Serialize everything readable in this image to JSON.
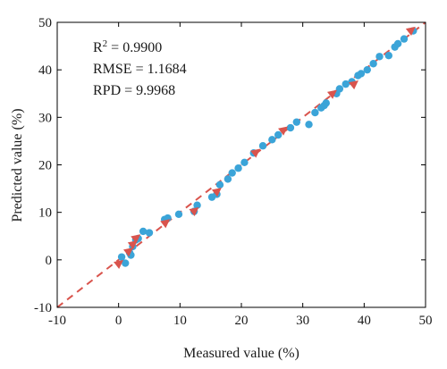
{
  "chart_data": {
    "type": "scatter",
    "xlabel": "Measured value (%)",
    "ylabel": "Predicted value (%)",
    "xlim": [
      -10,
      50
    ],
    "ylim": [
      -10,
      50
    ],
    "xticks": [
      -10,
      0,
      10,
      20,
      30,
      40,
      50
    ],
    "yticks": [
      -10,
      0,
      10,
      20,
      30,
      40,
      50
    ],
    "grid": false,
    "annotations": {
      "r2_prefix": "R",
      "r2_sup": "2",
      "r2_value": " = 0.9900",
      "rmse": "RMSE = 1.1684",
      "rpd": "RPD = 9.9968"
    },
    "reference_line": {
      "style": "dashed",
      "color": "#d9544d",
      "x": [
        -10,
        50
      ],
      "y": [
        -10,
        50
      ]
    },
    "colors": {
      "points": "#3ba4d8",
      "arrows": "#d9544d"
    },
    "series": [
      {
        "marker": "circle",
        "x": [
          0.5,
          1.1,
          1.8,
          2.0,
          2.3,
          2.8,
          3.2,
          4.0,
          5.0,
          7.5,
          8.0,
          9.8,
          12.3,
          12.8,
          15.2,
          16.0,
          16.5,
          17.8,
          18.5,
          19.5,
          20.5,
          22.0,
          23.5,
          25.0,
          26.0,
          28.0,
          29.0,
          31.0,
          32.0,
          33.0,
          33.5,
          33.8,
          35.5,
          36.0,
          37.0,
          38.0,
          39.0,
          39.5,
          40.5,
          41.5,
          42.5,
          44.0,
          45.0,
          45.5,
          46.5,
          48.0
        ],
        "y": [
          0.6,
          -0.7,
          1.5,
          1.0,
          2.8,
          4.2,
          4.5,
          6.0,
          5.7,
          8.5,
          8.8,
          9.6,
          10.2,
          11.5,
          13.2,
          13.8,
          15.8,
          17.0,
          18.3,
          19.3,
          20.5,
          22.5,
          24.0,
          25.3,
          26.3,
          27.8,
          29.0,
          28.5,
          31.0,
          32.0,
          32.5,
          33.0,
          35.0,
          36.0,
          37.0,
          37.5,
          38.8,
          39.2,
          40.0,
          41.3,
          42.8,
          43.0,
          44.8,
          45.5,
          46.5,
          48.2
        ]
      },
      {
        "marker": "arrow",
        "x": [
          0.2,
          1.8,
          2.5,
          3.0,
          7.8,
          12.5,
          16.2,
          22.5,
          27.0,
          35.0,
          38.5,
          47.8
        ],
        "y": [
          -0.6,
          2.0,
          3.5,
          4.8,
          8.0,
          10.5,
          14.6,
          22.8,
          27.5,
          35.2,
          37.2,
          48.5
        ]
      }
    ]
  }
}
